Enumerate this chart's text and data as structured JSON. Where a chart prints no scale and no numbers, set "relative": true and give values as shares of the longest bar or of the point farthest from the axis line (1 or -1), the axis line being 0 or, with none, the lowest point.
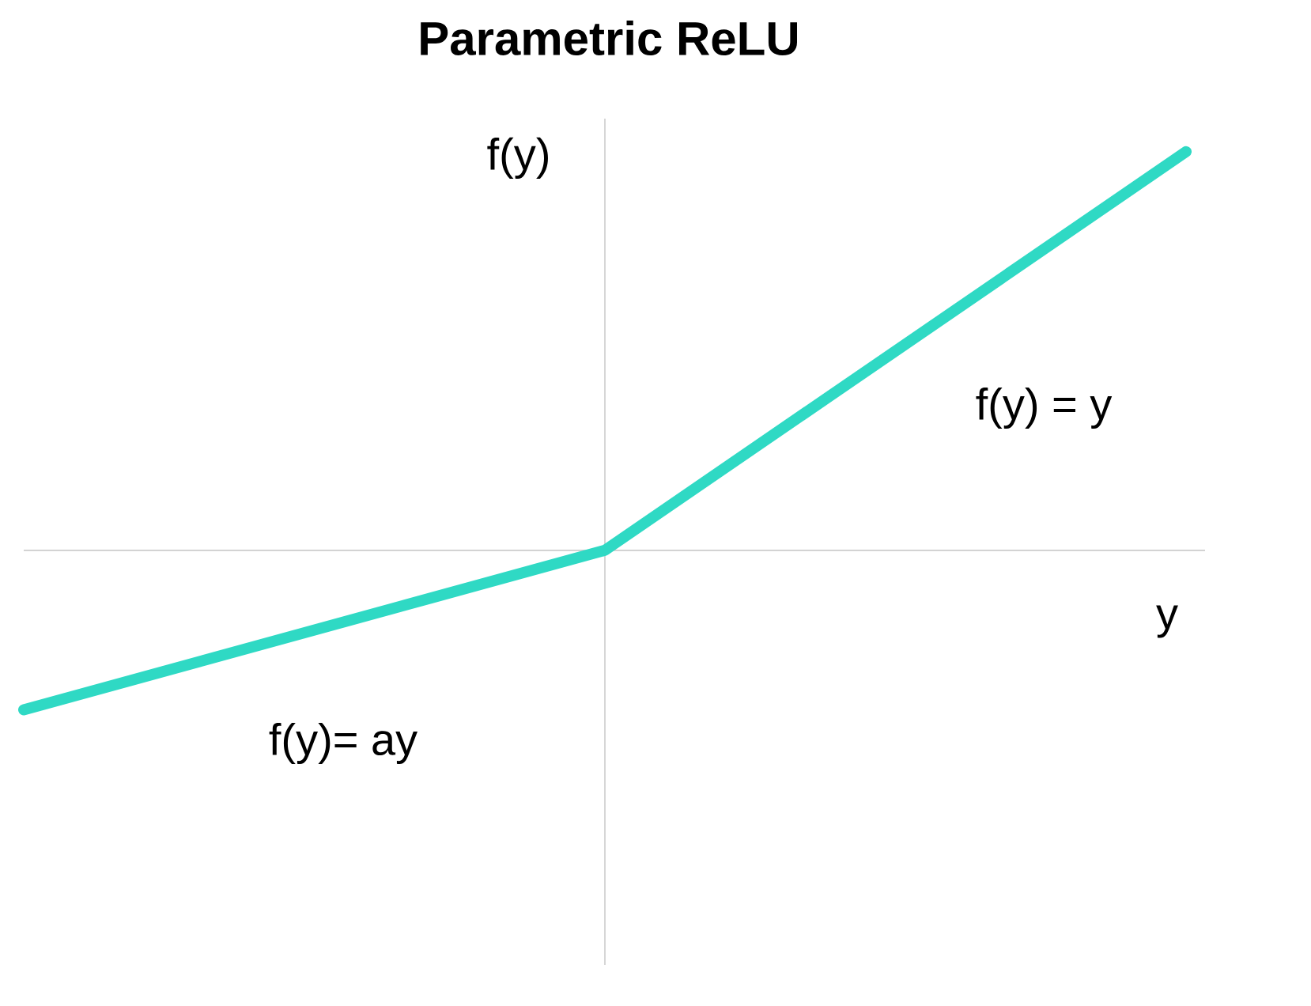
{
  "chart_data": {
    "type": "line",
    "title": "Parametric ReLU",
    "xlabel": "y",
    "ylabel": "f(y)",
    "annotations": [
      "f(y) = y",
      "f(y)= ay"
    ],
    "categories": [
      null,
      null,
      null
    ],
    "values": [
      -0.4,
      0,
      1
    ],
    "color": "#2fd9c4",
    "relative": true
  }
}
